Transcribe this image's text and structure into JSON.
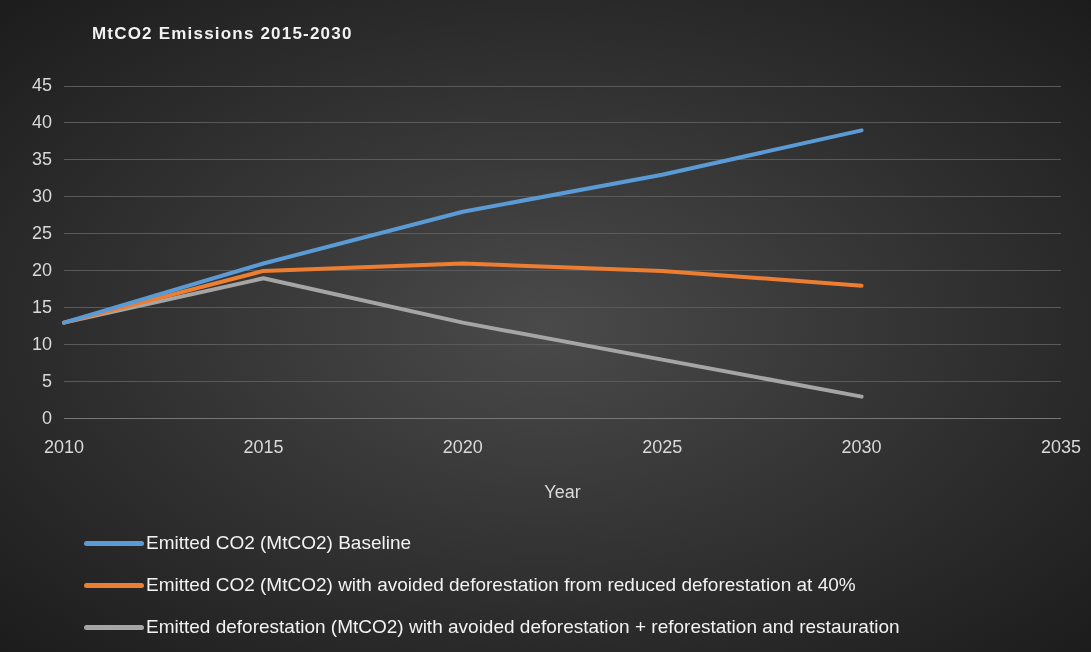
{
  "chart_data": {
    "type": "line",
    "title": "MtCO2 Emissions 2015-2030",
    "xlabel": "Year",
    "categories": [
      "2010",
      "2015",
      "2020",
      "2025",
      "2030",
      "2035"
    ],
    "series": [
      {
        "name": "Emitted CO2 (MtCO2) Baseline",
        "color": "#5b9bd5",
        "values": [
          13,
          21,
          28,
          33,
          39,
          null
        ]
      },
      {
        "name": "Emitted CO2 (MtCO2) with avoided deforestation from reduced deforestation at 40%",
        "color": "#ed7d31",
        "values": [
          13,
          20,
          21,
          20,
          18,
          null
        ]
      },
      {
        "name": "Emitted deforestation (MtCO2) with avoided deforestation + reforestation and restauration",
        "color": "#a5a5a5",
        "values": [
          13,
          19,
          13,
          8,
          3,
          null
        ]
      }
    ],
    "ylim": [
      0,
      45
    ],
    "yticks": [
      0,
      5,
      10,
      15,
      20,
      25,
      30,
      35,
      40,
      45
    ],
    "grid": "y",
    "legend": "bottom",
    "marker": "none",
    "line_style": "solid"
  }
}
